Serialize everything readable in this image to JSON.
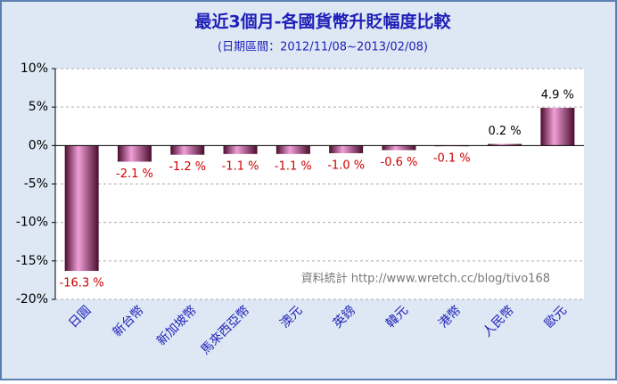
{
  "chart_data": {
    "type": "bar",
    "title": "最近3個月-各國貨幣升貶幅度比較",
    "subtitle": "(日期區間：2012/11/08~2013/02/08)",
    "annotation": "資料統計 http://www.wretch.cc/blog/tivo168",
    "categories": [
      "日圓",
      "新台幣",
      "新加坡幣",
      "馬來西亞幣",
      "澳元",
      "英鎊",
      "韓元",
      "港幣",
      "人民幣",
      "歐元"
    ],
    "values": [
      -16.3,
      -2.1,
      -1.2,
      -1.1,
      -1.1,
      -1.0,
      -0.6,
      -0.1,
      0.2,
      4.9
    ],
    "value_labels": [
      "-16.3 %",
      "-2.1 %",
      "-1.2 %",
      "-1.1 %",
      "-1.1 %",
      "-1.0 %",
      "-0.6 %",
      "-0.1 %",
      "0.2 %",
      "4.9 %"
    ],
    "value_label_colors": {
      "negative": "#cc0000",
      "positive": "#000000"
    },
    "color": "#f0a0d8",
    "shade_color": "#4a0c2c",
    "ylim": [
      -20,
      10
    ],
    "yticks": [
      {
        "value": -20,
        "label": "-20%"
      },
      {
        "value": -15,
        "label": "-15%"
      },
      {
        "value": -10,
        "label": "-10%"
      },
      {
        "value": -5,
        "label": "-5%"
      },
      {
        "value": 0,
        "label": "0%"
      },
      {
        "value": 5,
        "label": "5%"
      },
      {
        "value": 10,
        "label": "10%"
      }
    ],
    "grid": true
  }
}
